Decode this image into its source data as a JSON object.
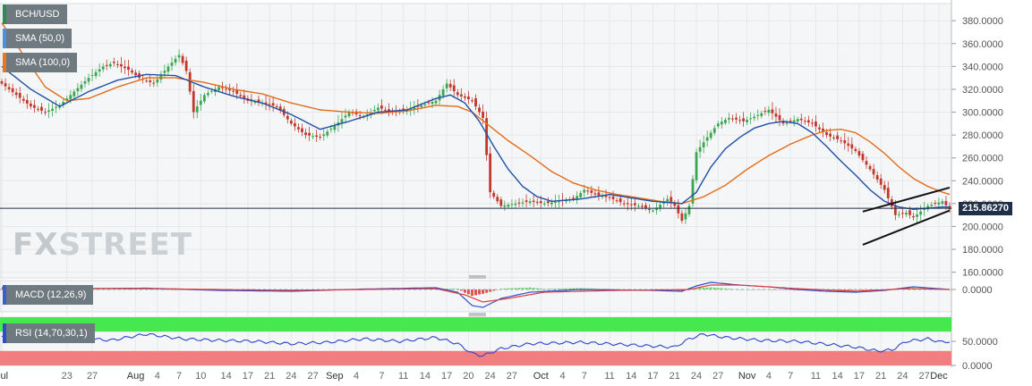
{
  "instrument": "BCH/USD",
  "indicators": {
    "sma50": "SMA (50,0)",
    "sma100": "SMA (100,0)",
    "macd": "MACD (12,26,9)",
    "rsi": "RSI (14,70,30,1)"
  },
  "watermark": {
    "fx": "FX",
    "street": "STREET"
  },
  "current_price": "215.86270",
  "colors": {
    "up": "#3aa651",
    "down": "#c0392b",
    "sma50": "#1f4fa8",
    "sma100": "#e36c1a",
    "trendline": "#111111",
    "rsi_over": "#47e84f",
    "rsi_under": "#f27f7f"
  },
  "chart_data": [
    {
      "type": "candlestick",
      "title": "BCH/USD",
      "ylim": [
        155,
        395
      ],
      "y_ticks": [
        "160.0000",
        "180.0000",
        "200.0000",
        "220.0000",
        "240.0000",
        "260.0000",
        "280.0000",
        "300.0000",
        "320.0000",
        "340.0000",
        "360.0000",
        "380.0000"
      ],
      "x_ticks": [
        "Jul",
        "23",
        "27",
        "Aug",
        "4",
        "7",
        "10",
        "14",
        "17",
        "21",
        "24",
        "27",
        "Sep",
        "4",
        "7",
        "11",
        "14",
        "17",
        "20",
        "24",
        "27",
        "Oct",
        "4",
        "7",
        "11",
        "14",
        "17",
        "21",
        "24",
        "27",
        "Nov",
        "4",
        "7",
        "11",
        "14",
        "17",
        "21",
        "24",
        "27",
        "Dec"
      ],
      "month_ticks": [
        "Jul",
        "Aug",
        "Sep",
        "Oct",
        "Nov",
        "Dec"
      ],
      "close_anchors": [
        [
          0,
          325
        ],
        [
          4,
          315
        ],
        [
          8,
          305
        ],
        [
          12,
          300
        ],
        [
          16,
          306
        ],
        [
          20,
          318
        ],
        [
          24,
          330
        ],
        [
          28,
          340
        ],
        [
          31,
          343
        ],
        [
          35,
          337
        ],
        [
          38,
          330
        ],
        [
          42,
          325
        ],
        [
          46,
          340
        ],
        [
          49,
          350
        ],
        [
          51,
          336
        ],
        [
          53,
          300
        ],
        [
          56,
          315
        ],
        [
          60,
          322
        ],
        [
          64,
          318
        ],
        [
          68,
          310
        ],
        [
          72,
          308
        ],
        [
          76,
          305
        ],
        [
          80,
          290
        ],
        [
          84,
          280
        ],
        [
          88,
          278
        ],
        [
          92,
          288
        ],
        [
          96,
          300
        ],
        [
          100,
          296
        ],
        [
          104,
          304
        ],
        [
          108,
          300
        ],
        [
          112,
          302
        ],
        [
          116,
          306
        ],
        [
          120,
          310
        ],
        [
          123,
          325
        ],
        [
          126,
          315
        ],
        [
          130,
          310
        ],
        [
          133,
          295
        ],
        [
          135,
          230
        ],
        [
          138,
          218
        ],
        [
          142,
          220
        ],
        [
          146,
          222
        ],
        [
          150,
          220
        ],
        [
          154,
          222
        ],
        [
          158,
          224
        ],
        [
          161,
          232
        ],
        [
          164,
          228
        ],
        [
          168,
          225
        ],
        [
          172,
          220
        ],
        [
          176,
          218
        ],
        [
          180,
          214
        ],
        [
          184,
          224
        ],
        [
          186,
          218
        ],
        [
          188,
          205
        ],
        [
          190,
          218
        ],
        [
          192,
          265
        ],
        [
          195,
          278
        ],
        [
          198,
          290
        ],
        [
          201,
          295
        ],
        [
          205,
          292
        ],
        [
          208,
          296
        ],
        [
          212,
          302
        ],
        [
          216,
          290
        ],
        [
          220,
          294
        ],
        [
          224,
          290
        ],
        [
          228,
          280
        ],
        [
          232,
          275
        ],
        [
          236,
          266
        ],
        [
          240,
          250
        ],
        [
          244,
          232
        ],
        [
          247,
          210
        ],
        [
          250,
          212
        ],
        [
          252,
          208
        ],
        [
          256,
          218
        ],
        [
          260,
          222
        ],
        [
          262,
          215
        ]
      ],
      "volatility_pattern": [
        2.5,
        5,
        3.5,
        6,
        4,
        7.5,
        3,
        5.5,
        4.5,
        6.5,
        3,
        8,
        2.8,
        5.2,
        4.2,
        6.8,
        3.6,
        4.4,
        7.2,
        3.2
      ],
      "sma50_anchors": [
        [
          0,
          340
        ],
        [
          8,
          320
        ],
        [
          16,
          305
        ],
        [
          24,
          318
        ],
        [
          32,
          328
        ],
        [
          40,
          333
        ],
        [
          48,
          332
        ],
        [
          56,
          322
        ],
        [
          64,
          314
        ],
        [
          72,
          308
        ],
        [
          80,
          298
        ],
        [
          88,
          285
        ],
        [
          96,
          292
        ],
        [
          104,
          300
        ],
        [
          112,
          302
        ],
        [
          120,
          312
        ],
        [
          124,
          315
        ],
        [
          128,
          308
        ],
        [
          132,
          292
        ],
        [
          136,
          270
        ],
        [
          140,
          250
        ],
        [
          144,
          235
        ],
        [
          148,
          226
        ],
        [
          152,
          222
        ],
        [
          156,
          223
        ],
        [
          160,
          224
        ],
        [
          164,
          226
        ],
        [
          168,
          228
        ],
        [
          172,
          226
        ],
        [
          176,
          224
        ],
        [
          180,
          222
        ],
        [
          184,
          221
        ],
        [
          188,
          220
        ],
        [
          192,
          230
        ],
        [
          196,
          252
        ],
        [
          200,
          268
        ],
        [
          204,
          278
        ],
        [
          208,
          286
        ],
        [
          212,
          290
        ],
        [
          216,
          292
        ],
        [
          220,
          290
        ],
        [
          224,
          282
        ],
        [
          228,
          270
        ],
        [
          232,
          257
        ],
        [
          236,
          245
        ],
        [
          240,
          232
        ],
        [
          244,
          222
        ],
        [
          248,
          217
        ],
        [
          252,
          215
        ],
        [
          256,
          216
        ],
        [
          260,
          217
        ],
        [
          262,
          217
        ]
      ],
      "sma100_anchors": [
        [
          0,
          378
        ],
        [
          6,
          350
        ],
        [
          12,
          322
        ],
        [
          18,
          310
        ],
        [
          24,
          312
        ],
        [
          32,
          322
        ],
        [
          40,
          330
        ],
        [
          48,
          330
        ],
        [
          56,
          326
        ],
        [
          64,
          320
        ],
        [
          72,
          316
        ],
        [
          80,
          308
        ],
        [
          88,
          302
        ],
        [
          96,
          300
        ],
        [
          104,
          299
        ],
        [
          112,
          301
        ],
        [
          120,
          306
        ],
        [
          126,
          305
        ],
        [
          130,
          300
        ],
        [
          134,
          290
        ],
        [
          140,
          275
        ],
        [
          146,
          262
        ],
        [
          152,
          248
        ],
        [
          158,
          238
        ],
        [
          164,
          232
        ],
        [
          170,
          228
        ],
        [
          176,
          225
        ],
        [
          182,
          222
        ],
        [
          188,
          220
        ],
        [
          194,
          226
        ],
        [
          200,
          236
        ],
        [
          206,
          250
        ],
        [
          212,
          262
        ],
        [
          218,
          272
        ],
        [
          224,
          280
        ],
        [
          228,
          284
        ],
        [
          232,
          285
        ],
        [
          236,
          282
        ],
        [
          240,
          274
        ],
        [
          244,
          264
        ],
        [
          248,
          252
        ],
        [
          252,
          242
        ],
        [
          256,
          235
        ],
        [
          260,
          230
        ],
        [
          262,
          228
        ]
      ],
      "trendlines": [
        [
          [
            238,
            213
          ],
          [
            262,
            234
          ]
        ],
        [
          [
            238,
            184
          ],
          [
            262,
            214
          ]
        ]
      ],
      "current_price": 215.8627
    },
    {
      "type": "line",
      "title": "MACD (12,26,9)",
      "ylim": [
        -25,
        10
      ],
      "y_ticks": [
        "0.0000"
      ],
      "macd_anchors": [
        [
          0,
          2
        ],
        [
          20,
          1
        ],
        [
          40,
          1.5
        ],
        [
          60,
          -1
        ],
        [
          80,
          -2
        ],
        [
          100,
          0.5
        ],
        [
          120,
          2
        ],
        [
          126,
          -3
        ],
        [
          130,
          -18
        ],
        [
          133,
          -20
        ],
        [
          138,
          -10
        ],
        [
          146,
          -3
        ],
        [
          160,
          0
        ],
        [
          180,
          -1
        ],
        [
          188,
          -2
        ],
        [
          192,
          4
        ],
        [
          196,
          8
        ],
        [
          204,
          5
        ],
        [
          212,
          3
        ],
        [
          220,
          0
        ],
        [
          228,
          -2
        ],
        [
          236,
          -3
        ],
        [
          244,
          -1
        ],
        [
          252,
          3
        ],
        [
          262,
          0
        ]
      ],
      "signal_anchors": [
        [
          0,
          1
        ],
        [
          20,
          1
        ],
        [
          40,
          1
        ],
        [
          60,
          0
        ],
        [
          80,
          -1
        ],
        [
          100,
          0
        ],
        [
          120,
          1
        ],
        [
          128,
          -6
        ],
        [
          133,
          -14
        ],
        [
          140,
          -10
        ],
        [
          150,
          -3
        ],
        [
          170,
          -1
        ],
        [
          190,
          0
        ],
        [
          196,
          5
        ],
        [
          204,
          5
        ],
        [
          212,
          3
        ],
        [
          220,
          1
        ],
        [
          236,
          -2
        ],
        [
          250,
          1
        ],
        [
          262,
          0
        ]
      ]
    },
    {
      "type": "line",
      "title": "RSI (14,70,30,1)",
      "ylim": [
        0,
        100
      ],
      "y_ticks": [
        "0.0000",
        "50.0000"
      ],
      "overbought": 70,
      "oversold": 30,
      "rsi_anchors": [
        [
          0,
          60
        ],
        [
          10,
          55
        ],
        [
          20,
          58
        ],
        [
          30,
          52
        ],
        [
          40,
          65
        ],
        [
          50,
          55
        ],
        [
          60,
          52
        ],
        [
          70,
          50
        ],
        [
          80,
          45
        ],
        [
          90,
          48
        ],
        [
          100,
          55
        ],
        [
          110,
          50
        ],
        [
          120,
          58
        ],
        [
          126,
          45
        ],
        [
          130,
          25
        ],
        [
          133,
          20
        ],
        [
          138,
          35
        ],
        [
          146,
          45
        ],
        [
          160,
          48
        ],
        [
          170,
          44
        ],
        [
          180,
          40
        ],
        [
          186,
          38
        ],
        [
          190,
          55
        ],
        [
          194,
          65
        ],
        [
          200,
          58
        ],
        [
          210,
          52
        ],
        [
          220,
          50
        ],
        [
          228,
          44
        ],
        [
          236,
          38
        ],
        [
          242,
          30
        ],
        [
          246,
          32
        ],
        [
          250,
          50
        ],
        [
          256,
          55
        ],
        [
          260,
          48
        ],
        [
          262,
          50
        ]
      ]
    }
  ]
}
